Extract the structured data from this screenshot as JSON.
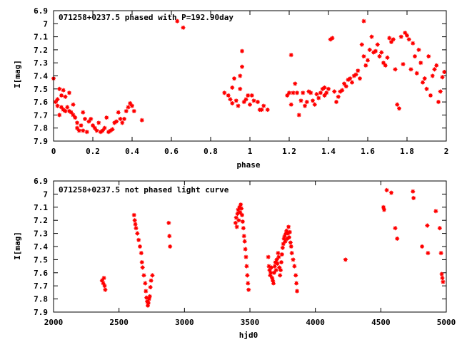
{
  "chart_data": [
    {
      "type": "scatter",
      "title": "071258+0237.5 phased with P=192.90day",
      "xlabel": "phase",
      "ylabel": "I[mag]",
      "xlim": [
        0,
        2
      ],
      "ylim": [
        7.9,
        6.9
      ],
      "y_inverted": true,
      "xticks": [
        0,
        0.2,
        0.4,
        0.6,
        0.8,
        1,
        1.2,
        1.4,
        1.6,
        1.8,
        2
      ],
      "xtick_labels": [
        "0",
        "0.2",
        "0.4",
        "0.6",
        "0.8",
        "1",
        "1.2",
        "1.4",
        "1.6",
        "1.8",
        "2"
      ],
      "yticks": [
        6.9,
        7,
        7.1,
        7.2,
        7.3,
        7.4,
        7.5,
        7.6,
        7.7,
        7.8,
        7.9
      ],
      "ytick_labels": [
        "6.9",
        "7",
        "7.1",
        "7.2",
        "7.3",
        "7.4",
        "7.5",
        "7.6",
        "7.7",
        "7.8",
        "7.9"
      ],
      "grid": false,
      "marker_color": "#ff0000",
      "points": [
        [
          0.0,
          7.42
        ],
        [
          0.01,
          7.6
        ],
        [
          0.02,
          7.58
        ],
        [
          0.02,
          7.63
        ],
        [
          0.03,
          7.5
        ],
        [
          0.03,
          7.7
        ],
        [
          0.04,
          7.55
        ],
        [
          0.04,
          7.64
        ],
        [
          0.05,
          7.66
        ],
        [
          0.05,
          7.51
        ],
        [
          0.06,
          7.67
        ],
        [
          0.06,
          7.56
        ],
        [
          0.07,
          7.64
        ],
        [
          0.08,
          7.53
        ],
        [
          0.08,
          7.67
        ],
        [
          0.09,
          7.68
        ],
        [
          0.1,
          7.62
        ],
        [
          0.1,
          7.7
        ],
        [
          0.11,
          7.72
        ],
        [
          0.12,
          7.76
        ],
        [
          0.12,
          7.8
        ],
        [
          0.13,
          7.82
        ],
        [
          0.14,
          7.78
        ],
        [
          0.15,
          7.68
        ],
        [
          0.15,
          7.82
        ],
        [
          0.16,
          7.73
        ],
        [
          0.17,
          7.83
        ],
        [
          0.18,
          7.75
        ],
        [
          0.19,
          7.73
        ],
        [
          0.2,
          7.78
        ],
        [
          0.21,
          7.8
        ],
        [
          0.22,
          7.82
        ],
        [
          0.23,
          7.76
        ],
        [
          0.24,
          7.83
        ],
        [
          0.25,
          7.82
        ],
        [
          0.26,
          7.8
        ],
        [
          0.27,
          7.72
        ],
        [
          0.28,
          7.83
        ],
        [
          0.29,
          7.82
        ],
        [
          0.3,
          7.81
        ],
        [
          0.31,
          7.76
        ],
        [
          0.32,
          7.75
        ],
        [
          0.33,
          7.68
        ],
        [
          0.34,
          7.73
        ],
        [
          0.35,
          7.76
        ],
        [
          0.36,
          7.73
        ],
        [
          0.37,
          7.67
        ],
        [
          0.38,
          7.64
        ],
        [
          0.39,
          7.61
        ],
        [
          0.4,
          7.63
        ],
        [
          0.41,
          7.67
        ],
        [
          0.45,
          7.74
        ],
        [
          0.63,
          6.98
        ],
        [
          0.66,
          7.03
        ],
        [
          0.87,
          7.53
        ],
        [
          0.89,
          7.55
        ],
        [
          0.9,
          7.58
        ],
        [
          0.91,
          7.49
        ],
        [
          0.91,
          7.61
        ],
        [
          0.92,
          7.42
        ],
        [
          0.93,
          7.59
        ],
        [
          0.94,
          7.63
        ],
        [
          0.95,
          7.5
        ],
        [
          0.95,
          7.4
        ],
        [
          0.96,
          7.21
        ],
        [
          0.96,
          7.33
        ],
        [
          0.97,
          7.6
        ],
        [
          0.98,
          7.58
        ],
        [
          0.99,
          7.55
        ],
        [
          1.0,
          7.62
        ],
        [
          1.01,
          7.55
        ],
        [
          1.02,
          7.59
        ],
        [
          1.04,
          7.6
        ],
        [
          1.05,
          7.66
        ],
        [
          1.06,
          7.66
        ],
        [
          1.07,
          7.63
        ],
        [
          1.09,
          7.66
        ],
        [
          1.19,
          7.55
        ],
        [
          1.2,
          7.53
        ],
        [
          1.21,
          7.24
        ],
        [
          1.21,
          7.62
        ],
        [
          1.22,
          7.53
        ],
        [
          1.23,
          7.46
        ],
        [
          1.24,
          7.53
        ],
        [
          1.25,
          7.7
        ],
        [
          1.26,
          7.59
        ],
        [
          1.27,
          7.53
        ],
        [
          1.28,
          7.63
        ],
        [
          1.29,
          7.6
        ],
        [
          1.3,
          7.52
        ],
        [
          1.31,
          7.53
        ],
        [
          1.32,
          7.59
        ],
        [
          1.33,
          7.62
        ],
        [
          1.34,
          7.54
        ],
        [
          1.35,
          7.57
        ],
        [
          1.36,
          7.53
        ],
        [
          1.37,
          7.5
        ],
        [
          1.38,
          7.49
        ],
        [
          1.38,
          7.55
        ],
        [
          1.39,
          7.53
        ],
        [
          1.4,
          7.5
        ],
        [
          1.41,
          7.12
        ],
        [
          1.42,
          7.11
        ],
        [
          1.43,
          7.52
        ],
        [
          1.44,
          7.6
        ],
        [
          1.45,
          7.56
        ],
        [
          1.46,
          7.52
        ],
        [
          1.47,
          7.51
        ],
        [
          1.48,
          7.46
        ],
        [
          1.49,
          7.48
        ],
        [
          1.5,
          7.43
        ],
        [
          1.51,
          7.42
        ],
        [
          1.52,
          7.45
        ],
        [
          1.53,
          7.4
        ],
        [
          1.54,
          7.39
        ],
        [
          1.55,
          7.36
        ],
        [
          1.56,
          7.42
        ],
        [
          1.57,
          7.16
        ],
        [
          1.58,
          7.25
        ],
        [
          1.58,
          6.98
        ],
        [
          1.59,
          7.32
        ],
        [
          1.6,
          7.28
        ],
        [
          1.61,
          7.2
        ],
        [
          1.62,
          7.1
        ],
        [
          1.63,
          7.22
        ],
        [
          1.64,
          7.21
        ],
        [
          1.65,
          7.16
        ],
        [
          1.66,
          7.25
        ],
        [
          1.67,
          7.22
        ],
        [
          1.68,
          7.3
        ],
        [
          1.69,
          7.32
        ],
        [
          1.7,
          7.26
        ],
        [
          1.71,
          7.11
        ],
        [
          1.72,
          7.14
        ],
        [
          1.73,
          7.12
        ],
        [
          1.74,
          7.35
        ],
        [
          1.75,
          7.62
        ],
        [
          1.76,
          7.65
        ],
        [
          1.77,
          7.1
        ],
        [
          1.78,
          7.31
        ],
        [
          1.79,
          7.07
        ],
        [
          1.8,
          7.09
        ],
        [
          1.81,
          7.12
        ],
        [
          1.82,
          7.35
        ],
        [
          1.83,
          7.15
        ],
        [
          1.84,
          7.25
        ],
        [
          1.85,
          7.38
        ],
        [
          1.86,
          7.2
        ],
        [
          1.87,
          7.3
        ],
        [
          1.88,
          7.45
        ],
        [
          1.89,
          7.42
        ],
        [
          1.9,
          7.5
        ],
        [
          1.91,
          7.25
        ],
        [
          1.92,
          7.55
        ],
        [
          1.93,
          7.4
        ],
        [
          1.94,
          7.35
        ],
        [
          1.95,
          7.32
        ],
        [
          1.96,
          7.6
        ],
        [
          1.97,
          7.52
        ],
        [
          1.98,
          7.41
        ],
        [
          1.99,
          7.37
        ]
      ]
    },
    {
      "type": "scatter",
      "title": "071258+0237.5 not phased light curve",
      "xlabel": "hjd0",
      "ylabel": "I[mag]",
      "xlim": [
        2000,
        5000
      ],
      "ylim": [
        7.9,
        6.9
      ],
      "y_inverted": true,
      "xticks": [
        2000,
        2500,
        3000,
        3500,
        4000,
        4500,
        5000
      ],
      "xtick_labels": [
        "2000",
        "2500",
        "3000",
        "3500",
        "4000",
        "4500",
        "5000"
      ],
      "yticks": [
        6.9,
        7,
        7.1,
        7.2,
        7.3,
        7.4,
        7.5,
        7.6,
        7.7,
        7.8,
        7.9
      ],
      "ytick_labels": [
        "6.9",
        "7",
        "7.1",
        "7.2",
        "7.3",
        "7.4",
        "7.5",
        "7.6",
        "7.7",
        "7.8",
        "7.9"
      ],
      "grid": false,
      "marker_color": "#ff0000",
      "points": [
        [
          2370,
          7.66
        ],
        [
          2380,
          7.68
        ],
        [
          2385,
          7.64
        ],
        [
          2390,
          7.7
        ],
        [
          2395,
          7.73
        ],
        [
          2615,
          7.16
        ],
        [
          2620,
          7.2
        ],
        [
          2625,
          7.23
        ],
        [
          2630,
          7.26
        ],
        [
          2640,
          7.3
        ],
        [
          2650,
          7.35
        ],
        [
          2660,
          7.4
        ],
        [
          2670,
          7.45
        ],
        [
          2675,
          7.52
        ],
        [
          2680,
          7.56
        ],
        [
          2690,
          7.62
        ],
        [
          2700,
          7.68
        ],
        [
          2705,
          7.74
        ],
        [
          2710,
          7.79
        ],
        [
          2715,
          7.82
        ],
        [
          2720,
          7.85
        ],
        [
          2725,
          7.83
        ],
        [
          2730,
          7.8
        ],
        [
          2735,
          7.78
        ],
        [
          2740,
          7.71
        ],
        [
          2745,
          7.66
        ],
        [
          2755,
          7.62
        ],
        [
          2880,
          7.22
        ],
        [
          2885,
          7.32
        ],
        [
          2890,
          7.4
        ],
        [
          3390,
          7.22
        ],
        [
          3395,
          7.18
        ],
        [
          3400,
          7.25
        ],
        [
          3405,
          7.15
        ],
        [
          3410,
          7.12
        ],
        [
          3415,
          7.2
        ],
        [
          3420,
          7.1
        ],
        [
          3425,
          7.14
        ],
        [
          3430,
          7.08
        ],
        [
          3435,
          7.11
        ],
        [
          3440,
          7.16
        ],
        [
          3445,
          7.21
        ],
        [
          3450,
          7.26
        ],
        [
          3455,
          7.32
        ],
        [
          3460,
          7.36
        ],
        [
          3465,
          7.42
        ],
        [
          3470,
          7.48
        ],
        [
          3475,
          7.55
        ],
        [
          3480,
          7.62
        ],
        [
          3485,
          7.68
        ],
        [
          3490,
          7.73
        ],
        [
          3640,
          7.48
        ],
        [
          3645,
          7.55
        ],
        [
          3650,
          7.58
        ],
        [
          3655,
          7.62
        ],
        [
          3660,
          7.6
        ],
        [
          3665,
          7.56
        ],
        [
          3670,
          7.64
        ],
        [
          3675,
          7.66
        ],
        [
          3680,
          7.68
        ],
        [
          3685,
          7.6
        ],
        [
          3690,
          7.55
        ],
        [
          3695,
          7.52
        ],
        [
          3700,
          7.58
        ],
        [
          3705,
          7.5
        ],
        [
          3710,
          7.53
        ],
        [
          3715,
          7.45
        ],
        [
          3720,
          7.48
        ],
        [
          3725,
          7.56
        ],
        [
          3730,
          7.62
        ],
        [
          3735,
          7.58
        ],
        [
          3740,
          7.52
        ],
        [
          3745,
          7.46
        ],
        [
          3750,
          7.41
        ],
        [
          3755,
          7.38
        ],
        [
          3760,
          7.34
        ],
        [
          3765,
          7.32
        ],
        [
          3770,
          7.36
        ],
        [
          3775,
          7.3
        ],
        [
          3780,
          7.28
        ],
        [
          3785,
          7.34
        ],
        [
          3790,
          7.3
        ],
        [
          3795,
          7.25
        ],
        [
          3800,
          7.33
        ],
        [
          3805,
          7.29
        ],
        [
          3810,
          7.37
        ],
        [
          3815,
          7.4
        ],
        [
          3820,
          7.45
        ],
        [
          3830,
          7.5
        ],
        [
          3840,
          7.55
        ],
        [
          3850,
          7.62
        ],
        [
          3855,
          7.68
        ],
        [
          3860,
          7.74
        ],
        [
          4230,
          7.5
        ],
        [
          4520,
          7.1
        ],
        [
          4525,
          7.12
        ],
        [
          4545,
          6.97
        ],
        [
          4580,
          6.99
        ],
        [
          4610,
          7.26
        ],
        [
          4625,
          7.34
        ],
        [
          4745,
          6.98
        ],
        [
          4750,
          7.03
        ],
        [
          4815,
          7.4
        ],
        [
          4855,
          7.24
        ],
        [
          4860,
          7.45
        ],
        [
          4920,
          7.13
        ],
        [
          4950,
          7.26
        ],
        [
          4960,
          7.45
        ],
        [
          4965,
          7.61
        ],
        [
          4970,
          7.64
        ],
        [
          4975,
          7.67
        ]
      ]
    }
  ]
}
